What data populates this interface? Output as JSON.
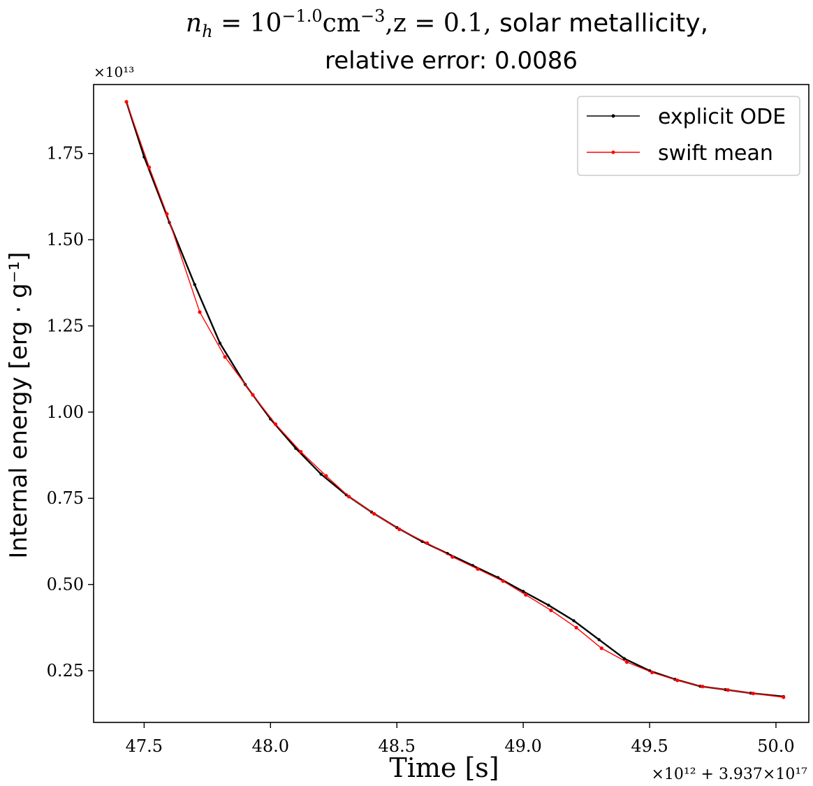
{
  "chart_data": {
    "type": "line",
    "title_lines": [
      "n_h = 10^{-1.0} cm^{-3}, z = 0.1, solar metallicity,",
      "relative error: 0.0086"
    ],
    "title_parts": {
      "nh_label": "n",
      "nh_sub": "h",
      "eq": " = 10",
      "exp": "−1.0",
      "unit": "cm",
      "unit_exp": "−3",
      "z_part": ",z = 0.1,",
      "rest": " solar metallicity,",
      "line2": "relative error: 0.0086"
    },
    "xlabel": "Time [s]",
    "ylabel": "Internal energy [erg · g⁻¹]",
    "x_offset_label": "×10¹² + 3.937×10¹⁷",
    "y_multiplier_label": "×10¹³",
    "xlim": [
      47.3,
      50.13
    ],
    "ylim": [
      0.1,
      1.95
    ],
    "x_ticks": [
      47.5,
      48.0,
      48.5,
      49.0,
      49.5,
      50.0
    ],
    "x_tick_labels": [
      "47.5",
      "48.0",
      "48.5",
      "49.0",
      "49.5",
      "50.0"
    ],
    "y_ticks": [
      0.25,
      0.5,
      0.75,
      1.0,
      1.25,
      1.5,
      1.75
    ],
    "y_tick_labels": [
      "0.25",
      "0.50",
      "0.75",
      "1.00",
      "1.25",
      "1.50",
      "1.75"
    ],
    "grid": false,
    "legend_position": "top-right",
    "series": [
      {
        "name": "explicit ODE",
        "color": "#000000",
        "marker": "dot",
        "x": [
          47.43,
          47.5,
          47.6,
          47.7,
          47.8,
          47.9,
          48.0,
          48.1,
          48.2,
          48.3,
          48.4,
          48.5,
          48.6,
          48.7,
          48.8,
          48.9,
          49.0,
          49.1,
          49.2,
          49.3,
          49.4,
          49.5,
          49.6,
          49.7,
          49.8,
          49.9,
          50.03
        ],
        "y": [
          1.9,
          1.74,
          1.55,
          1.37,
          1.2,
          1.08,
          0.98,
          0.895,
          0.82,
          0.76,
          0.71,
          0.665,
          0.625,
          0.59,
          0.555,
          0.52,
          0.48,
          0.44,
          0.395,
          0.34,
          0.285,
          0.25,
          0.225,
          0.205,
          0.195,
          0.185,
          0.175
        ]
      },
      {
        "name": "swift mean",
        "color": "#ff0000",
        "marker": "dot",
        "x": [
          47.43,
          47.52,
          47.59,
          47.72,
          47.82,
          47.93,
          48.02,
          48.12,
          48.22,
          48.31,
          48.41,
          48.51,
          48.62,
          48.72,
          48.82,
          48.92,
          49.01,
          49.11,
          49.21,
          49.31,
          49.41,
          49.51,
          49.61,
          49.71,
          49.81,
          49.91,
          50.03
        ],
        "y": [
          1.9,
          1.71,
          1.575,
          1.29,
          1.16,
          1.05,
          0.965,
          0.885,
          0.815,
          0.755,
          0.705,
          0.66,
          0.62,
          0.58,
          0.545,
          0.51,
          0.47,
          0.425,
          0.375,
          0.315,
          0.275,
          0.245,
          0.222,
          0.204,
          0.194,
          0.184,
          0.173
        ]
      }
    ]
  }
}
